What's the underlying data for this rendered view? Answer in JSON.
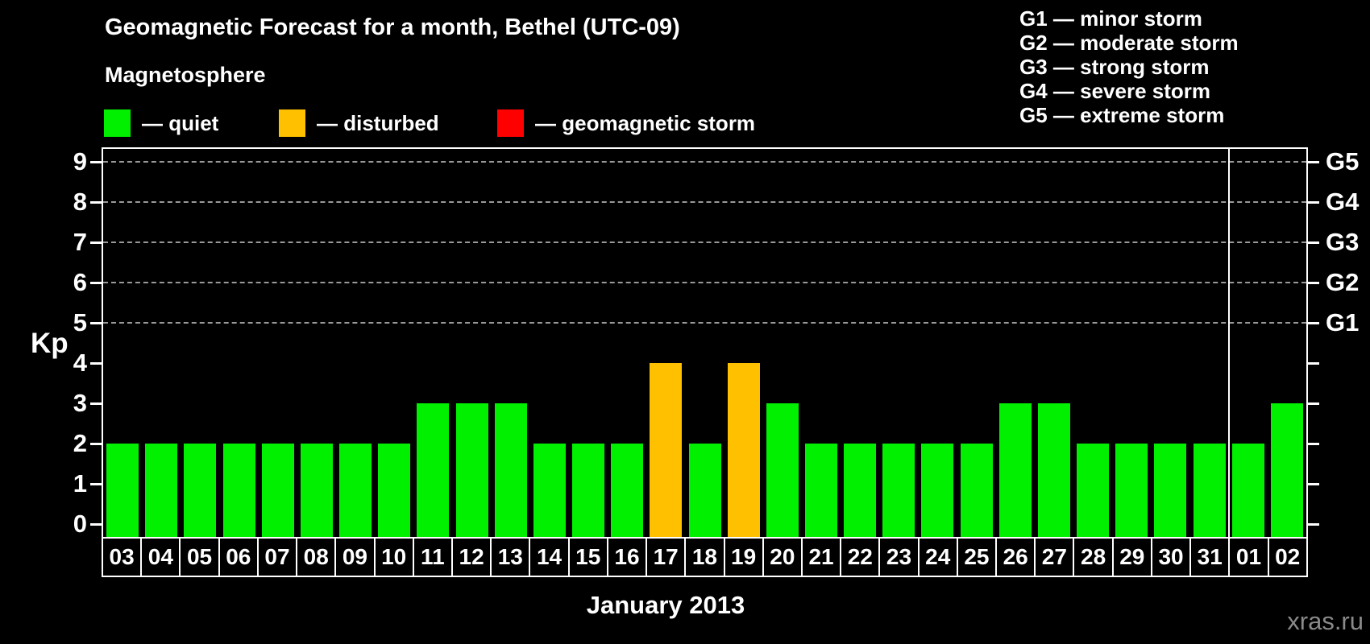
{
  "title": "Geomagnetic Forecast for a month, Bethel (UTC-09)",
  "subtitle": "Magnetosphere",
  "legend": {
    "items": [
      {
        "status": "quiet",
        "label": "— quiet",
        "color": "#00f000",
        "x": 129
      },
      {
        "status": "disturbed",
        "label": "— disturbed",
        "color": "#ffc000",
        "x": 346
      },
      {
        "status": "storm",
        "label": "— geomagnetic storm",
        "color": "#ff0000",
        "x": 617
      }
    ]
  },
  "g_legend": [
    "G1 — minor storm",
    "G2 — moderate storm",
    "G3 — strong storm",
    "G4 — severe storm",
    "G5 — extreme storm"
  ],
  "axis": {
    "y_label": "Kp",
    "x_label": "January 2013",
    "y_ticks": [
      0,
      1,
      2,
      3,
      4,
      5,
      6,
      7,
      8,
      9
    ],
    "right_scale": [
      {
        "kp": 5,
        "label": "G1"
      },
      {
        "kp": 6,
        "label": "G2"
      },
      {
        "kp": 7,
        "label": "G3"
      },
      {
        "kp": 8,
        "label": "G4"
      },
      {
        "kp": 9,
        "label": "G5"
      }
    ]
  },
  "watermark": "xras.ru",
  "colors": {
    "background": "#000000",
    "axis": "#ffffff",
    "gridline": "#999999",
    "quiet": "#00f000",
    "disturbed": "#ffc000",
    "storm": "#ff0000",
    "watermark": "#8a8a8a"
  },
  "chart_data": {
    "type": "bar",
    "title": "Geomagnetic Forecast for a month, Bethel (UTC-09)",
    "xlabel": "January 2013",
    "ylabel": "Kp",
    "ylim": [
      0,
      9
    ],
    "grid_levels_kp": [
      5,
      6,
      7,
      8,
      9
    ],
    "legend_position": "top",
    "categories": [
      "03",
      "04",
      "05",
      "06",
      "07",
      "08",
      "09",
      "10",
      "11",
      "12",
      "13",
      "14",
      "15",
      "16",
      "17",
      "18",
      "19",
      "20",
      "21",
      "22",
      "23",
      "24",
      "25",
      "26",
      "27",
      "28",
      "29",
      "30",
      "31",
      "01",
      "02"
    ],
    "values": [
      2,
      2,
      2,
      2,
      2,
      2,
      2,
      2,
      3,
      3,
      3,
      2,
      2,
      2,
      4,
      2,
      4,
      3,
      2,
      2,
      2,
      2,
      2,
      3,
      3,
      2,
      2,
      2,
      2,
      2,
      3
    ],
    "statuses": [
      "quiet",
      "quiet",
      "quiet",
      "quiet",
      "quiet",
      "quiet",
      "quiet",
      "quiet",
      "quiet",
      "quiet",
      "quiet",
      "quiet",
      "quiet",
      "quiet",
      "disturbed",
      "quiet",
      "disturbed",
      "quiet",
      "quiet",
      "quiet",
      "quiet",
      "quiet",
      "quiet",
      "quiet",
      "quiet",
      "quiet",
      "quiet",
      "quiet",
      "quiet",
      "quiet",
      "quiet"
    ],
    "separator_before_index": 29
  }
}
